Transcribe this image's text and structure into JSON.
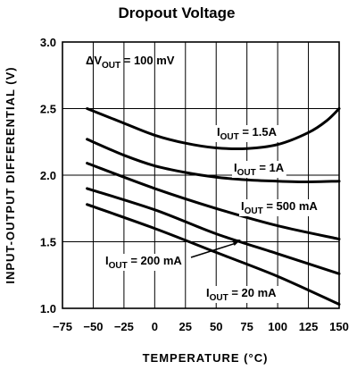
{
  "chart_data": {
    "type": "line",
    "title": "Dropout Voltage",
    "xlabel": "TEMPERATURE (°C)",
    "ylabel": "INPUT-OUTPUT DIFFERENTIAL (V)",
    "xlim": [
      -75,
      150
    ],
    "ylim": [
      1.0,
      3.0
    ],
    "xticks": [
      "−75",
      "−50",
      "−25",
      "0",
      "25",
      "50",
      "75",
      "100",
      "125",
      "150"
    ],
    "yticks": [
      "1.0",
      "1.5",
      "2.0",
      "2.5",
      "3.0"
    ],
    "grid": true,
    "condition": {
      "prefix": "ΔV",
      "sub": "OUT",
      "suffix": " = 100 mV"
    },
    "series": [
      {
        "label_prefix": "I",
        "label_sub": "OUT",
        "label_suffix": " = 1.5A",
        "x": [
          -55,
          -25,
          0,
          25,
          50,
          75,
          100,
          125,
          140,
          150
        ],
        "y": [
          2.5,
          2.39,
          2.3,
          2.24,
          2.205,
          2.2,
          2.23,
          2.32,
          2.41,
          2.5
        ]
      },
      {
        "label_prefix": "I",
        "label_sub": "OUT",
        "label_suffix": " = 1A",
        "x": [
          -55,
          -25,
          0,
          25,
          50,
          75,
          100,
          125,
          150
        ],
        "y": [
          2.27,
          2.15,
          2.07,
          2.02,
          1.985,
          1.965,
          1.955,
          1.95,
          1.955
        ]
      },
      {
        "label_prefix": "I",
        "label_sub": "OUT",
        "label_suffix": " = 500 mA",
        "x": [
          -55,
          0,
          50,
          100,
          150
        ],
        "y": [
          2.09,
          1.9,
          1.75,
          1.62,
          1.52
        ]
      },
      {
        "label_prefix": "I",
        "label_sub": "OUT",
        "label_suffix": " = 200 mA",
        "x": [
          -55,
          0,
          50,
          100,
          150
        ],
        "y": [
          1.9,
          1.74,
          1.56,
          1.41,
          1.26
        ]
      },
      {
        "label_prefix": "I",
        "label_sub": "OUT",
        "label_suffix": " = 20 mA",
        "x": [
          -55,
          0,
          50,
          100,
          150
        ],
        "y": [
          1.78,
          1.6,
          1.42,
          1.24,
          1.03
        ]
      }
    ]
  }
}
